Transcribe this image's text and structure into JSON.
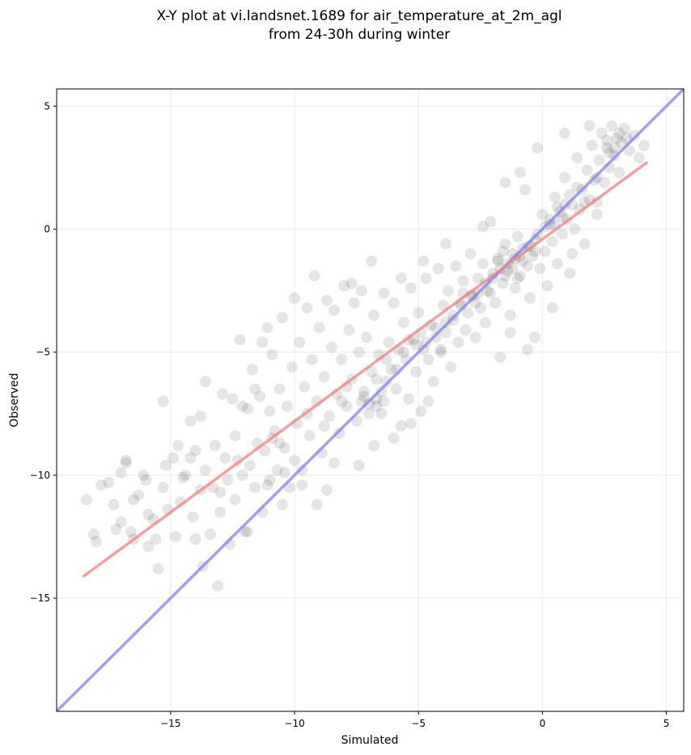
{
  "chart_data": {
    "type": "scatter",
    "title_lines": [
      "X-Y plot at vi.landsnet.1689 for air_temperature_at_2m_agl",
      "from 24-30h during winter"
    ],
    "xlabel": "Simulated",
    "ylabel": "Observed",
    "xlim": [
      -19.6,
      5.7
    ],
    "ylim": [
      -19.6,
      5.7
    ],
    "x_ticks": [
      -15,
      -10,
      -5,
      0,
      5
    ],
    "y_ticks": [
      -15,
      -10,
      -5,
      0,
      5
    ],
    "x_tick_labels": [
      "−15",
      "−10",
      "−5",
      "0",
      "5"
    ],
    "y_tick_labels": [
      "−15",
      "−10",
      "−5",
      "0",
      "5"
    ],
    "grid": true,
    "point_color": "#000000",
    "points": [
      [
        -18.4,
        -11.0
      ],
      [
        -18.1,
        -12.4
      ],
      [
        -18.0,
        -12.7
      ],
      [
        -17.8,
        -10.4
      ],
      [
        -17.5,
        -10.3
      ],
      [
        -17.3,
        -11.2
      ],
      [
        -17.0,
        -11.9
      ],
      [
        -17.0,
        -9.9
      ],
      [
        -16.8,
        -9.4
      ],
      [
        -16.6,
        -12.3
      ],
      [
        -16.5,
        -11.0
      ],
      [
        -16.3,
        -10.8
      ],
      [
        -16.0,
        -10.2
      ],
      [
        -15.9,
        -11.6
      ],
      [
        -15.6,
        -12.6
      ],
      [
        -15.5,
        -13.8
      ],
      [
        -15.3,
        -7.0
      ],
      [
        -15.3,
        -10.5
      ],
      [
        -15.1,
        -11.4
      ],
      [
        -14.9,
        -9.3
      ],
      [
        -14.8,
        -12.5
      ],
      [
        -14.6,
        -11.1
      ],
      [
        -14.4,
        -10.0
      ],
      [
        -14.2,
        -7.8
      ],
      [
        -14.0,
        -9.0
      ],
      [
        -14.1,
        -11.7
      ],
      [
        -13.8,
        -10.6
      ],
      [
        -13.6,
        -6.2
      ],
      [
        -13.6,
        -9.8
      ],
      [
        -13.4,
        -12.4
      ],
      [
        -13.3,
        -10.5
      ],
      [
        -13.2,
        -8.8
      ],
      [
        -13.1,
        -14.5
      ],
      [
        -13.0,
        -11.5
      ],
      [
        -12.8,
        -9.3
      ],
      [
        -12.7,
        -10.2
      ],
      [
        -12.5,
        -6.9
      ],
      [
        -12.4,
        -8.4
      ],
      [
        -12.4,
        -11.0
      ],
      [
        -12.2,
        -4.5
      ],
      [
        -12.1,
        -10.0
      ],
      [
        -12.0,
        -12.3
      ],
      [
        -11.9,
        -7.3
      ],
      [
        -11.8,
        -9.6
      ],
      [
        -11.7,
        -5.7
      ],
      [
        -11.6,
        -10.5
      ],
      [
        -11.5,
        -8.7
      ],
      [
        -11.4,
        -6.8
      ],
      [
        -11.3,
        -11.5
      ],
      [
        -11.2,
        -9.0
      ],
      [
        -11.1,
        -4.0
      ],
      [
        -11.0,
        -7.4
      ],
      [
        -11.0,
        -10.2
      ],
      [
        -10.9,
        -5.1
      ],
      [
        -10.8,
        -8.2
      ],
      [
        -10.7,
        -9.8
      ],
      [
        -10.6,
        -6.5
      ],
      [
        -10.5,
        -11.2
      ],
      [
        -10.5,
        -3.6
      ],
      [
        -10.4,
        -8.9
      ],
      [
        -10.3,
        -7.2
      ],
      [
        -10.2,
        -10.5
      ],
      [
        -10.1,
        -5.6
      ],
      [
        -10.0,
        -9.4
      ],
      [
        -10.0,
        -2.8
      ],
      [
        -9.9,
        -7.9
      ],
      [
        -9.8,
        -4.6
      ],
      [
        -9.7,
        -9.8
      ],
      [
        -9.6,
        -6.4
      ],
      [
        -9.5,
        -3.2
      ],
      [
        -9.4,
        -8.4
      ],
      [
        -9.3,
        -5.3
      ],
      [
        -9.2,
        -1.9
      ],
      [
        -9.1,
        -7.0
      ],
      [
        -9.0,
        -4.0
      ],
      [
        -8.9,
        -9.1
      ],
      [
        -8.8,
        -6.0
      ],
      [
        -8.7,
        -2.9
      ],
      [
        -8.6,
        -7.6
      ],
      [
        -8.5,
        -4.8
      ],
      [
        -8.4,
        -3.3
      ],
      [
        -8.3,
        -6.7
      ],
      [
        -8.2,
        -8.3
      ],
      [
        -8.1,
        -5.3
      ],
      [
        -8.0,
        -2.3
      ],
      [
        -7.9,
        -7.2
      ],
      [
        -7.8,
        -4.1
      ],
      [
        -7.7,
        -6.1
      ],
      [
        -7.6,
        -3.0
      ],
      [
        -7.5,
        -7.8
      ],
      [
        -7.4,
        -5.0
      ],
      [
        -7.3,
        -2.5
      ],
      [
        -7.2,
        -6.6
      ],
      [
        -7.1,
        -4.4
      ],
      [
        -7.0,
        -7.1
      ],
      [
        -6.9,
        -5.8
      ],
      [
        -6.8,
        -3.5
      ],
      [
        -6.7,
        -6.9
      ],
      [
        -6.6,
        -5.1
      ],
      [
        -6.5,
        -7.5
      ],
      [
        -6.4,
        -2.6
      ],
      [
        -6.3,
        -6.2
      ],
      [
        -6.2,
        -4.6
      ],
      [
        -6.1,
        -5.7
      ],
      [
        -6.0,
        -3.0
      ],
      [
        -5.9,
        -6.5
      ],
      [
        -5.8,
        -4.9
      ],
      [
        -5.7,
        -8.0
      ],
      [
        -5.6,
        -3.8
      ],
      [
        -5.5,
        -5.3
      ],
      [
        -5.4,
        -6.9
      ],
      [
        -5.3,
        -2.4
      ],
      [
        -5.2,
        -4.5
      ],
      [
        -5.1,
        -5.8
      ],
      [
        -5.0,
        -3.4
      ],
      [
        -4.9,
        -7.4
      ],
      [
        -4.8,
        -4.9
      ],
      [
        -4.7,
        -2.0
      ],
      [
        -4.6,
        -5.3
      ],
      [
        -4.5,
        -3.9
      ],
      [
        -4.4,
        -6.2
      ],
      [
        -4.3,
        -4.4
      ],
      [
        -4.2,
        -1.6
      ],
      [
        -4.1,
        -5.0
      ],
      [
        -4.0,
        -3.1
      ],
      [
        -3.9,
        -4.2
      ],
      [
        -3.8,
        -2.5
      ],
      [
        -3.7,
        -5.6
      ],
      [
        -3.6,
        -3.7
      ],
      [
        -3.5,
        -1.5
      ],
      [
        -3.4,
        -4.6
      ],
      [
        -3.3,
        -3.0
      ],
      [
        -3.2,
        -2.1
      ],
      [
        -3.1,
        -4.1
      ],
      [
        -3.0,
        -3.4
      ],
      [
        -2.9,
        -1.0
      ],
      [
        -2.8,
        -2.7
      ],
      [
        -2.7,
        -4.4
      ],
      [
        -2.6,
        -2.0
      ],
      [
        -2.5,
        -3.2
      ],
      [
        -2.4,
        -1.4
      ],
      [
        -2.3,
        -3.8
      ],
      [
        -2.2,
        -2.5
      ],
      [
        -2.1,
        0.3
      ],
      [
        -2.0,
        -1.8
      ],
      [
        -1.9,
        -3.0
      ],
      [
        -1.8,
        -1.2
      ],
      [
        -1.7,
        -5.2
      ],
      [
        -1.6,
        -2.2
      ],
      [
        -1.5,
        -0.6
      ],
      [
        -1.4,
        -1.7
      ],
      [
        -1.3,
        -3.5
      ],
      [
        -1.2,
        -1.0
      ],
      [
        -1.1,
        -2.4
      ],
      [
        -1.0,
        -0.3
      ],
      [
        -0.9,
        -1.9
      ],
      [
        -0.8,
        -1.3
      ],
      [
        -0.7,
        1.6
      ],
      [
        -0.6,
        -0.7
      ],
      [
        -0.5,
        -2.8
      ],
      [
        -0.4,
        -1.1
      ],
      [
        -0.3,
        -4.4
      ],
      [
        -0.2,
        -0.2
      ],
      [
        -0.1,
        -1.6
      ],
      [
        0.0,
        0.6
      ],
      [
        0.1,
        -0.9
      ],
      [
        0.2,
        -2.3
      ],
      [
        0.3,
        0.2
      ],
      [
        0.4,
        -0.5
      ],
      [
        0.5,
        1.3
      ],
      [
        0.6,
        -1.4
      ],
      [
        0.7,
        0.7
      ],
      [
        0.8,
        -0.2
      ],
      [
        0.9,
        2.1
      ],
      [
        1.0,
        0.4
      ],
      [
        1.1,
        -1.8
      ],
      [
        1.2,
        1.0
      ],
      [
        1.3,
        0.0
      ],
      [
        1.4,
        2.9
      ],
      [
        1.5,
        0.8
      ],
      [
        1.6,
        1.6
      ],
      [
        1.7,
        -0.6
      ],
      [
        1.8,
        2.4
      ],
      [
        1.9,
        1.2
      ],
      [
        2.0,
        3.4
      ],
      [
        2.1,
        2.0
      ],
      [
        2.2,
        0.6
      ],
      [
        2.3,
        2.8
      ],
      [
        2.4,
        3.9
      ],
      [
        2.5,
        1.9
      ],
      [
        2.6,
        3.3
      ],
      [
        2.7,
        2.5
      ],
      [
        2.8,
        4.2
      ],
      [
        2.9,
        3.0
      ],
      [
        3.0,
        3.7
      ],
      [
        3.1,
        2.3
      ],
      [
        3.2,
        3.5
      ],
      [
        3.3,
        4.1
      ],
      [
        3.5,
        3.2
      ],
      [
        3.7,
        3.8
      ],
      [
        3.9,
        2.9
      ],
      [
        4.1,
        3.4
      ],
      [
        -13.8,
        -7.6
      ],
      [
        -14.5,
        -10.1
      ],
      [
        -12.9,
        -6.7
      ],
      [
        -11.3,
        -4.6
      ],
      [
        -10.6,
        -8.7
      ],
      [
        -9.1,
        -11.2
      ],
      [
        -8.4,
        -9.5
      ],
      [
        -7.4,
        -9.6
      ],
      [
        -6.8,
        -8.8
      ],
      [
        -6.0,
        -8.5
      ],
      [
        -5.3,
        -7.9
      ],
      [
        -4.6,
        -7.0
      ],
      [
        -7.7,
        -2.2
      ],
      [
        -6.9,
        -1.3
      ],
      [
        -5.7,
        -2.0
      ],
      [
        -4.8,
        -1.3
      ],
      [
        -3.9,
        -0.6
      ],
      [
        -2.4,
        0.1
      ],
      [
        -1.5,
        1.9
      ],
      [
        -0.9,
        2.3
      ],
      [
        -0.2,
        3.3
      ],
      [
        0.9,
        3.9
      ],
      [
        1.9,
        4.2
      ],
      [
        -1.3,
        -4.2
      ],
      [
        -0.6,
        -4.9
      ],
      [
        0.4,
        -3.2
      ],
      [
        1.2,
        -1.0
      ],
      [
        2.2,
        1.1
      ],
      [
        -8.7,
        -10.6
      ],
      [
        -9.7,
        -10.4
      ],
      [
        -11.9,
        -12.3
      ],
      [
        -12.6,
        -12.8
      ],
      [
        -13.7,
        -13.7
      ],
      [
        -16.1,
        -10.0
      ],
      [
        -16.8,
        -9.5
      ],
      [
        -15.2,
        -9.6
      ],
      [
        -14.7,
        -8.8
      ],
      [
        -12.1,
        -7.2
      ],
      [
        -11.6,
        -6.5
      ],
      [
        -7.9,
        -6.4
      ],
      [
        -7.2,
        -6.8
      ],
      [
        -6.7,
        -6.1
      ],
      [
        -6.4,
        -7.0
      ],
      [
        -7.0,
        -7.5
      ],
      [
        -6.3,
        -5.3
      ],
      [
        -5.9,
        -5.7
      ],
      [
        -5.6,
        -5.0
      ],
      [
        -5.1,
        -4.7
      ],
      [
        -4.7,
        -4.6
      ],
      [
        -4.3,
        -4.0
      ],
      [
        -3.9,
        -3.8
      ],
      [
        -3.6,
        -3.5
      ],
      [
        -3.3,
        -3.1
      ],
      [
        -2.9,
        -2.7
      ],
      [
        -2.6,
        -2.6
      ],
      [
        -2.3,
        -2.2
      ],
      [
        -2.0,
        -2.0
      ],
      [
        -1.7,
        -1.6
      ],
      [
        -1.4,
        -1.4
      ],
      [
        -1.1,
        -1.2
      ],
      [
        -0.8,
        -0.8
      ],
      [
        -0.5,
        -0.7
      ],
      [
        -0.3,
        -0.4
      ],
      [
        0.1,
        0.1
      ],
      [
        0.3,
        0.4
      ],
      [
        0.6,
        0.9
      ],
      [
        0.9,
        1.0
      ],
      [
        1.1,
        1.4
      ],
      [
        2.6,
        3.6
      ],
      [
        2.9,
        3.3
      ],
      [
        3.1,
        3.9
      ],
      [
        2.7,
        3.1
      ],
      [
        -1.5,
        -1.9
      ],
      [
        -1.2,
        -1.6
      ],
      [
        -0.9,
        -1.1
      ],
      [
        -1.8,
        -1.3
      ],
      [
        -2.1,
        -2.6
      ],
      [
        -0.6,
        -1.5
      ],
      [
        -1.0,
        -2.0
      ],
      [
        -1.6,
        -0.9
      ],
      [
        -6.7,
        -7.2
      ],
      [
        -6.5,
        -6.6
      ],
      [
        -7.3,
        -7.0
      ],
      [
        -5.4,
        -4.5
      ],
      [
        -4.9,
        -4.2
      ],
      [
        -4.1,
        -4.9
      ],
      [
        -3.2,
        -2.6
      ],
      [
        -2.7,
        -3.0
      ],
      [
        -0.3,
        -0.9
      ],
      [
        0.5,
        0.2
      ],
      [
        0.8,
        0.5
      ],
      [
        1.4,
        1.7
      ],
      [
        1.7,
        1.1
      ],
      [
        2.2,
        2.1
      ],
      [
        3.4,
        3.7
      ],
      [
        -10.9,
        -8.5
      ],
      [
        -10.4,
        -9.9
      ],
      [
        -11.1,
        -10.4
      ],
      [
        -9.5,
        -7.5
      ],
      [
        -8.8,
        -8.0
      ],
      [
        -8.1,
        -7.0
      ],
      [
        -12.3,
        -9.4
      ],
      [
        -13.0,
        -10.7
      ],
      [
        -14.2,
        -9.3
      ],
      [
        -15.7,
        -11.8
      ],
      [
        -17.2,
        -12.2
      ],
      [
        -15.9,
        -12.9
      ],
      [
        -16.5,
        -12.6
      ],
      [
        -14.0,
        -12.6
      ]
    ],
    "fit_line": {
      "color": "#f08080",
      "x": [
        -18.5,
        4.2
      ],
      "y": [
        -14.1,
        2.7
      ]
    },
    "one_to_one_line": {
      "color": "#8080f0",
      "x": [
        -19.6,
        5.7
      ],
      "y": [
        -19.6,
        5.7
      ]
    }
  }
}
